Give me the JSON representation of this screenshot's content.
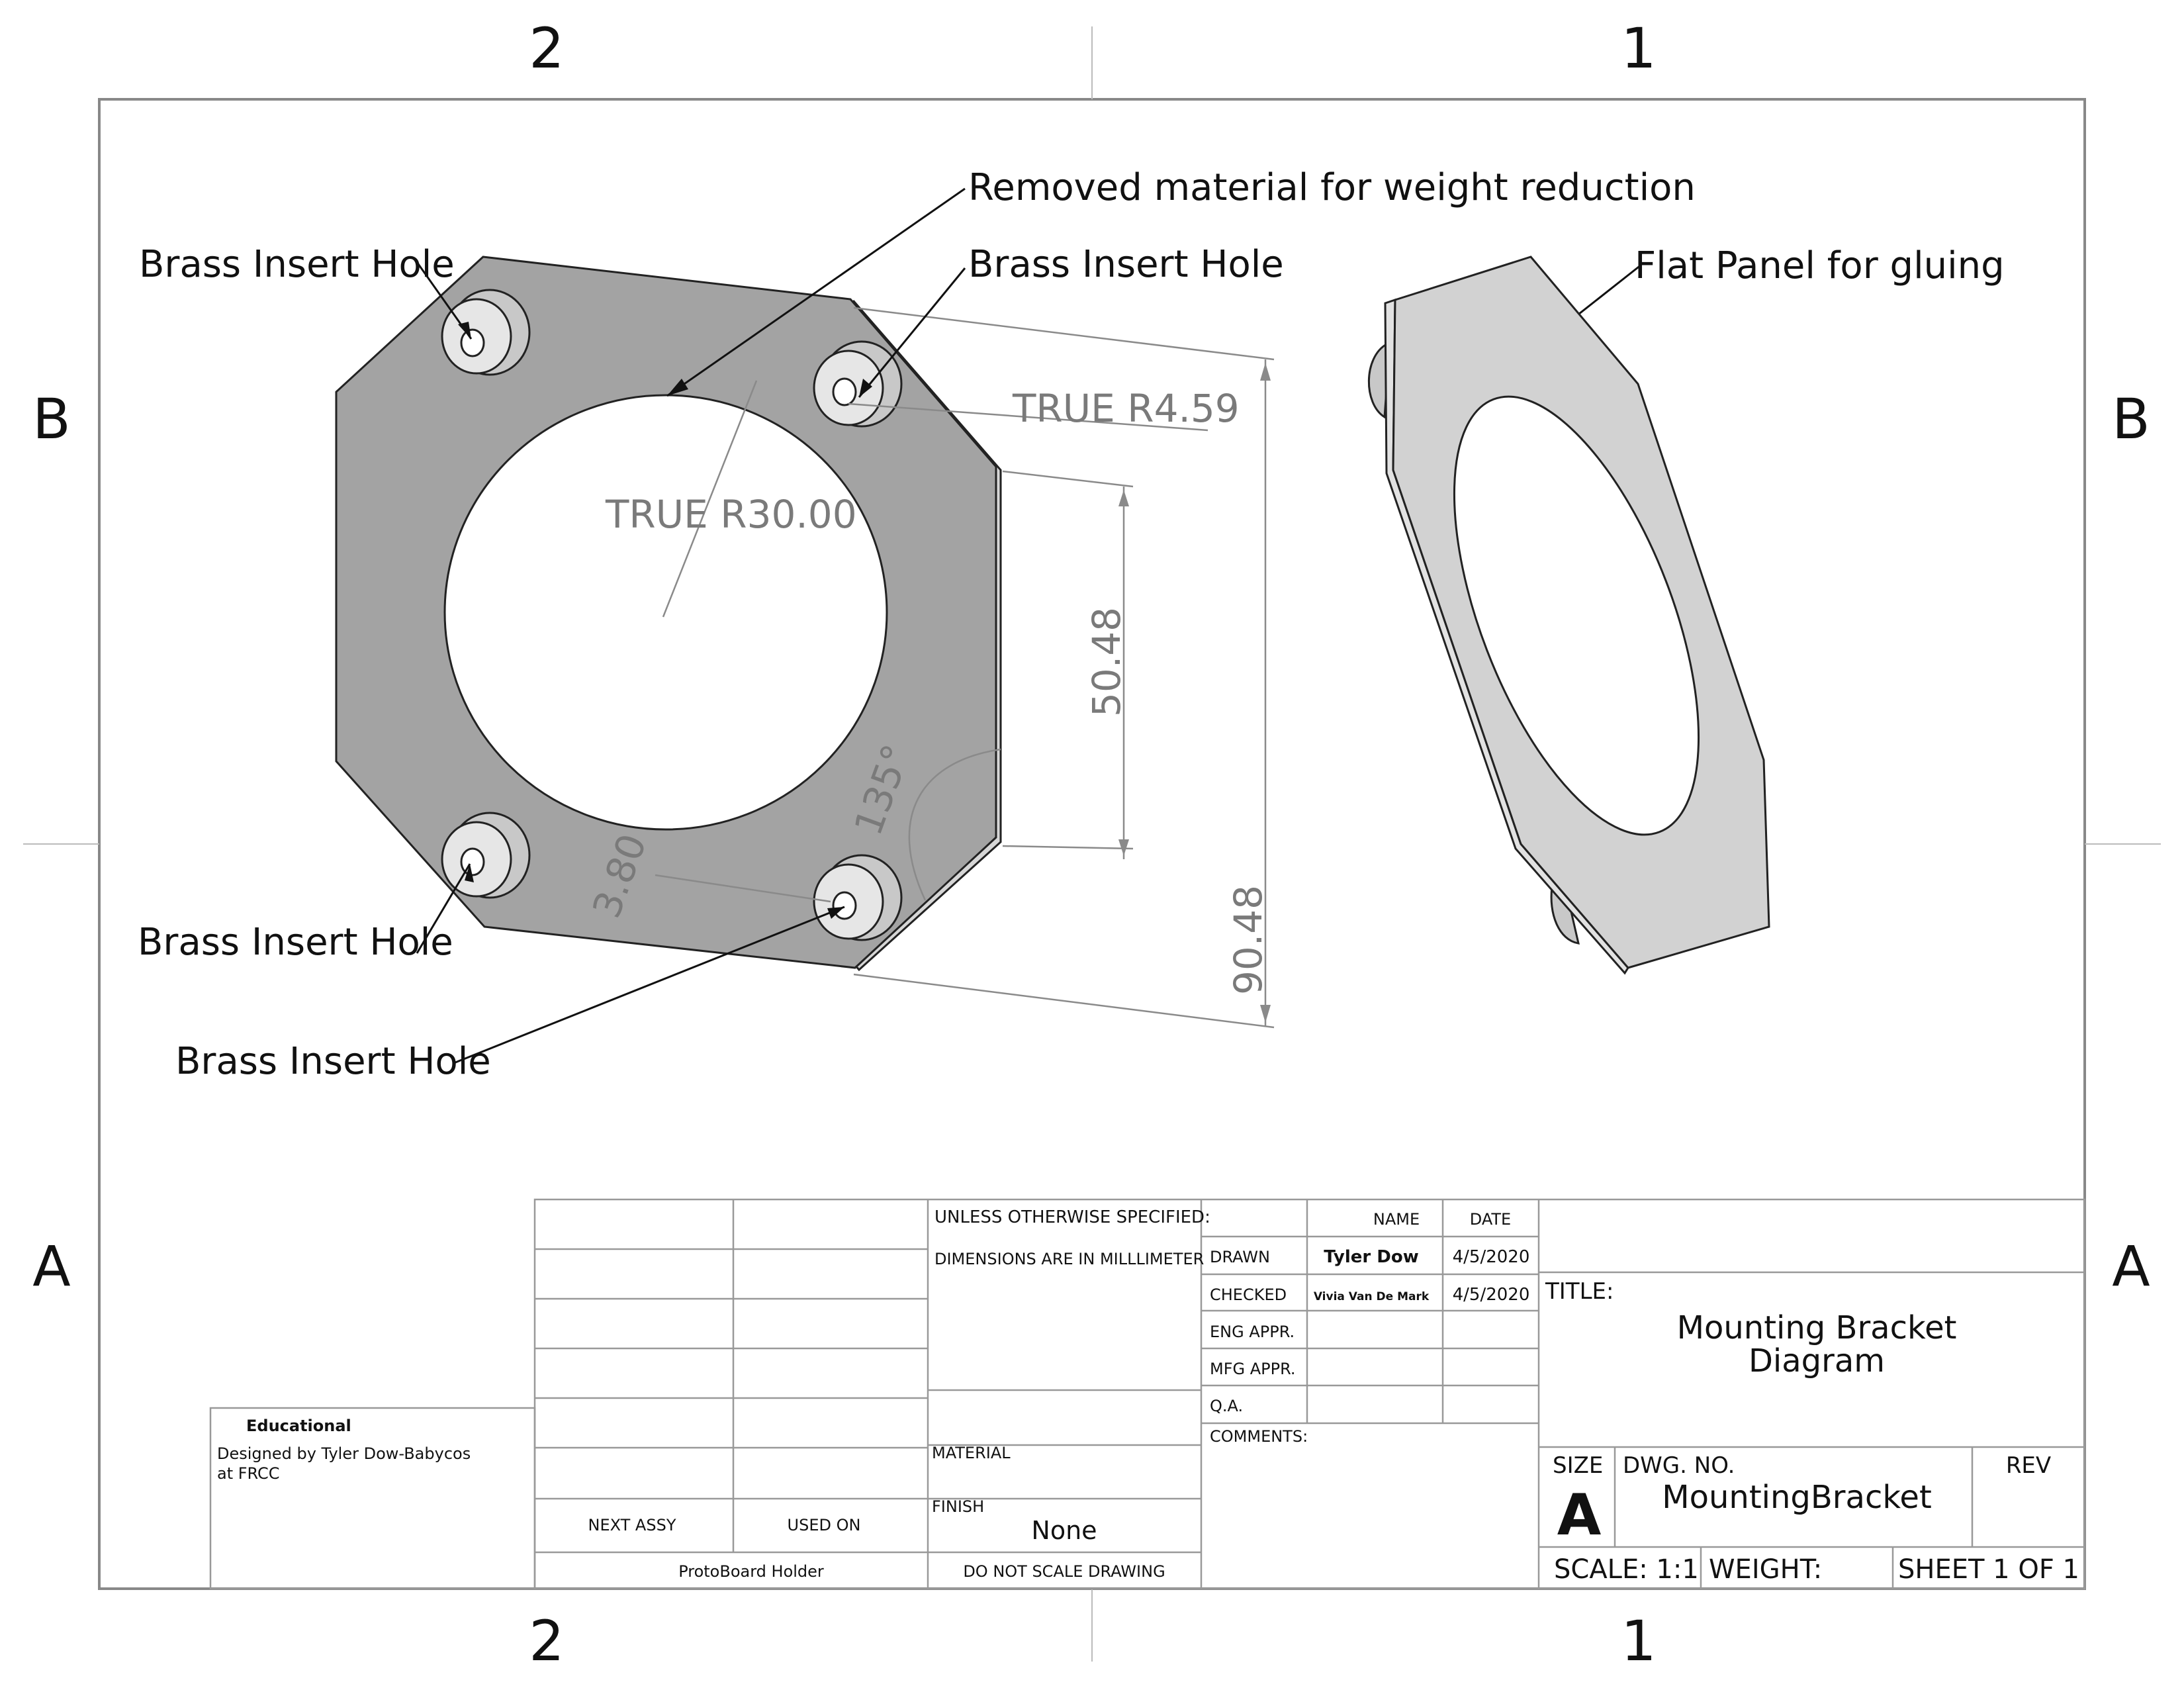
{
  "zones": {
    "top": [
      "2",
      "1"
    ],
    "bottom": [
      "2",
      "1"
    ],
    "left": [
      "B",
      "A"
    ],
    "right": [
      "B",
      "A"
    ]
  },
  "callouts": {
    "removed_material": "Removed material for weight reduction",
    "brass_insert_hole": "Brass Insert Hole",
    "flat_panel": "Flat Panel for gluing"
  },
  "dimensions": {
    "hole_radius": "TRUE R4.59",
    "bore_radius": "TRUE R30.00",
    "inner_height": "50.48",
    "overall_height": "90.48",
    "angle": "135°",
    "offset": "3.80"
  },
  "title_block": {
    "unless_specified": "UNLESS OTHERWISE SPECIFIED:",
    "dimensions_note": "DIMENSIONS ARE IN MILLLIMETER",
    "material_label": "MATERIAL",
    "finish_label": "FINISH",
    "finish_value": "None",
    "do_not_scale": "DO NOT SCALE DRAWING",
    "next_assy": "NEXT ASSY",
    "used_on": "USED ON",
    "next_assy_value": "ProtoBoard Holder",
    "name_header": "NAME",
    "date_header": "DATE",
    "drawn_label": "DRAWN",
    "drawn_name": "Tyler Dow",
    "drawn_date": "4/5/2020",
    "checked_label": "CHECKED",
    "checked_name": "Vivia Van De Mark",
    "checked_date": "4/5/2020",
    "eng_appr": "ENG APPR.",
    "mfg_appr": "MFG APPR.",
    "qa": "Q.A.",
    "comments": "COMMENTS:",
    "title_label": "TITLE:",
    "title_line1": "Mounting Bracket",
    "title_line2": "Diagram",
    "size_label": "SIZE",
    "size_value": "A",
    "dwg_no_label": "DWG.  NO.",
    "dwg_no_value": "MountingBracket",
    "rev_label": "REV",
    "scale": "SCALE: 1:1",
    "weight": "WEIGHT:",
    "sheet": "SHEET 1 OF 1",
    "edu_title": "Educational",
    "edu_line1": "Designed by Tyler Dow-Babycos",
    "edu_line2": "at FRCC"
  }
}
